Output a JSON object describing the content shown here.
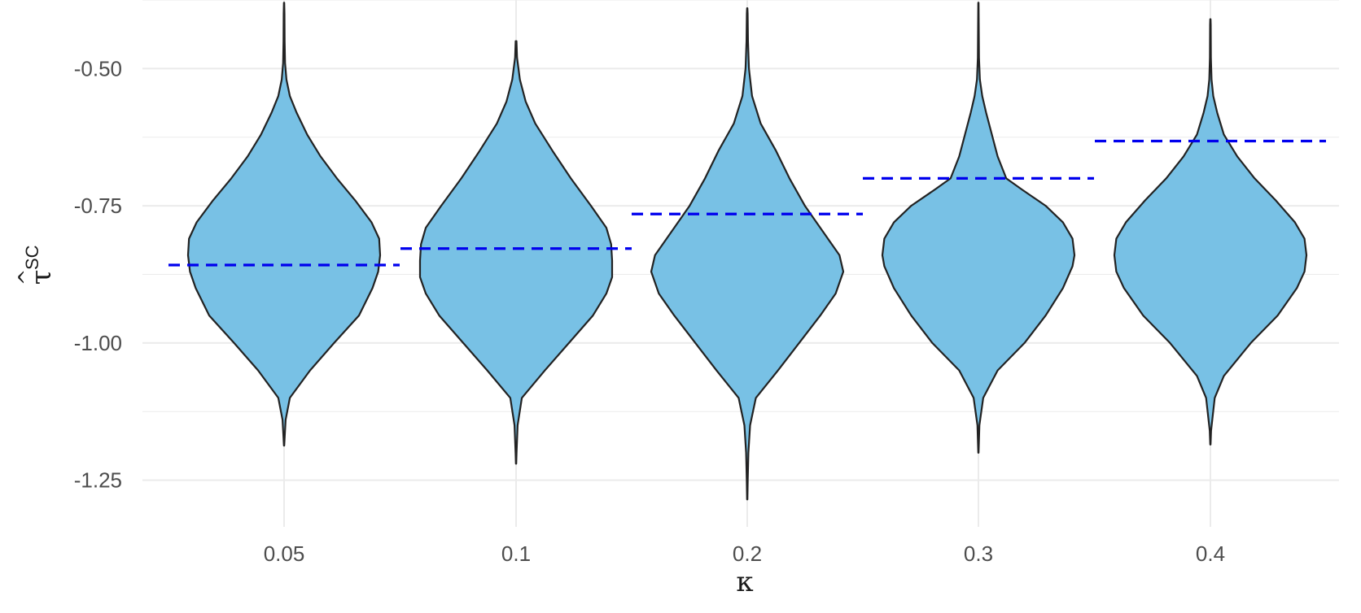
{
  "chart_data": {
    "type": "violin",
    "xlabel": "κ",
    "ylabel": {
      "base": "τ",
      "hat": "^",
      "superscript": "SC"
    },
    "categories": [
      "0.05",
      "0.1",
      "0.2",
      "0.3",
      "0.4"
    ],
    "ylim": [
      -1.335,
      -0.375
    ],
    "y_ticks": [
      -0.5,
      -0.75,
      -1.0,
      -1.25
    ],
    "y_tick_labels": [
      "-0.50",
      "-0.75",
      "-1.00",
      "-1.25"
    ],
    "grid": true,
    "colors": {
      "fill": "#78c1e5",
      "outline": "#222222",
      "reference": "#0000ee",
      "grid": "#ebebeb"
    },
    "violins": [
      {
        "category": "0.05",
        "profile": [
          [
            -1.187,
            0.002
          ],
          [
            -1.17,
            0.007
          ],
          [
            -1.14,
            0.016
          ],
          [
            -1.1,
            0.06
          ],
          [
            -1.05,
            0.27
          ],
          [
            -1.0,
            0.52
          ],
          [
            -0.95,
            0.78
          ],
          [
            -0.9,
            0.92
          ],
          [
            -0.87,
            0.98
          ],
          [
            -0.84,
            1.0
          ],
          [
            -0.81,
            0.99
          ],
          [
            -0.78,
            0.91
          ],
          [
            -0.74,
            0.74
          ],
          [
            -0.7,
            0.55
          ],
          [
            -0.66,
            0.38
          ],
          [
            -0.62,
            0.24
          ],
          [
            -0.58,
            0.13
          ],
          [
            -0.55,
            0.06
          ],
          [
            -0.52,
            0.025
          ],
          [
            -0.49,
            0.01
          ],
          [
            -0.45,
            0.006
          ],
          [
            -0.4,
            0.004
          ],
          [
            -0.38,
            0.002
          ]
        ]
      },
      {
        "category": "0.1",
        "profile": [
          [
            -1.22,
            0.002
          ],
          [
            -1.2,
            0.005
          ],
          [
            -1.15,
            0.016
          ],
          [
            -1.1,
            0.06
          ],
          [
            -1.05,
            0.3
          ],
          [
            -1.0,
            0.55
          ],
          [
            -0.95,
            0.8
          ],
          [
            -0.91,
            0.94
          ],
          [
            -0.88,
            1.0
          ],
          [
            -0.85,
            1.0
          ],
          [
            -0.82,
            0.99
          ],
          [
            -0.79,
            0.94
          ],
          [
            -0.75,
            0.78
          ],
          [
            -0.7,
            0.57
          ],
          [
            -0.65,
            0.38
          ],
          [
            -0.6,
            0.2
          ],
          [
            -0.56,
            0.1
          ],
          [
            -0.52,
            0.04
          ],
          [
            -0.48,
            0.01
          ],
          [
            -0.45,
            0.004
          ]
        ]
      },
      {
        "category": "0.2",
        "profile": [
          [
            -1.285,
            0.002
          ],
          [
            -1.25,
            0.005
          ],
          [
            -1.2,
            0.012
          ],
          [
            -1.15,
            0.03
          ],
          [
            -1.1,
            0.09
          ],
          [
            -1.05,
            0.32
          ],
          [
            -1.0,
            0.54
          ],
          [
            -0.95,
            0.76
          ],
          [
            -0.91,
            0.92
          ],
          [
            -0.87,
            1.0
          ],
          [
            -0.84,
            0.96
          ],
          [
            -0.8,
            0.8
          ],
          [
            -0.75,
            0.6
          ],
          [
            -0.7,
            0.44
          ],
          [
            -0.65,
            0.3
          ],
          [
            -0.6,
            0.14
          ],
          [
            -0.55,
            0.05
          ],
          [
            -0.5,
            0.018
          ],
          [
            -0.45,
            0.008
          ],
          [
            -0.4,
            0.004
          ],
          [
            -0.39,
            0.002
          ]
        ]
      },
      {
        "category": "0.3",
        "profile": [
          [
            -1.2,
            0.002
          ],
          [
            -1.18,
            0.005
          ],
          [
            -1.15,
            0.01
          ],
          [
            -1.1,
            0.05
          ],
          [
            -1.05,
            0.2
          ],
          [
            -1.0,
            0.48
          ],
          [
            -0.95,
            0.7
          ],
          [
            -0.9,
            0.88
          ],
          [
            -0.86,
            0.98
          ],
          [
            -0.84,
            1.0
          ],
          [
            -0.81,
            0.98
          ],
          [
            -0.78,
            0.88
          ],
          [
            -0.75,
            0.7
          ],
          [
            -0.72,
            0.45
          ],
          [
            -0.7,
            0.29
          ],
          [
            -0.66,
            0.2
          ],
          [
            -0.62,
            0.14
          ],
          [
            -0.58,
            0.08
          ],
          [
            -0.55,
            0.04
          ],
          [
            -0.52,
            0.015
          ],
          [
            -0.48,
            0.006
          ],
          [
            -0.42,
            0.003
          ],
          [
            -0.38,
            0.002
          ]
        ]
      },
      {
        "category": "0.4",
        "profile": [
          [
            -1.185,
            0.002
          ],
          [
            -1.16,
            0.007
          ],
          [
            -1.1,
            0.045
          ],
          [
            -1.06,
            0.14
          ],
          [
            -1.0,
            0.42
          ],
          [
            -0.95,
            0.7
          ],
          [
            -0.9,
            0.9
          ],
          [
            -0.87,
            0.98
          ],
          [
            -0.84,
            1.0
          ],
          [
            -0.81,
            0.98
          ],
          [
            -0.78,
            0.88
          ],
          [
            -0.74,
            0.68
          ],
          [
            -0.7,
            0.46
          ],
          [
            -0.66,
            0.28
          ],
          [
            -0.62,
            0.14
          ],
          [
            -0.58,
            0.07
          ],
          [
            -0.55,
            0.03
          ],
          [
            -0.52,
            0.012
          ],
          [
            -0.48,
            0.005
          ],
          [
            -0.42,
            0.003
          ],
          [
            -0.41,
            0.002
          ]
        ]
      }
    ],
    "reference_lines": [
      {
        "category": "0.05",
        "y": -0.858
      },
      {
        "category": "0.1",
        "y": -0.828
      },
      {
        "category": "0.2",
        "y": -0.765
      },
      {
        "category": "0.3",
        "y": -0.7
      },
      {
        "category": "0.4",
        "y": -0.632
      }
    ]
  }
}
